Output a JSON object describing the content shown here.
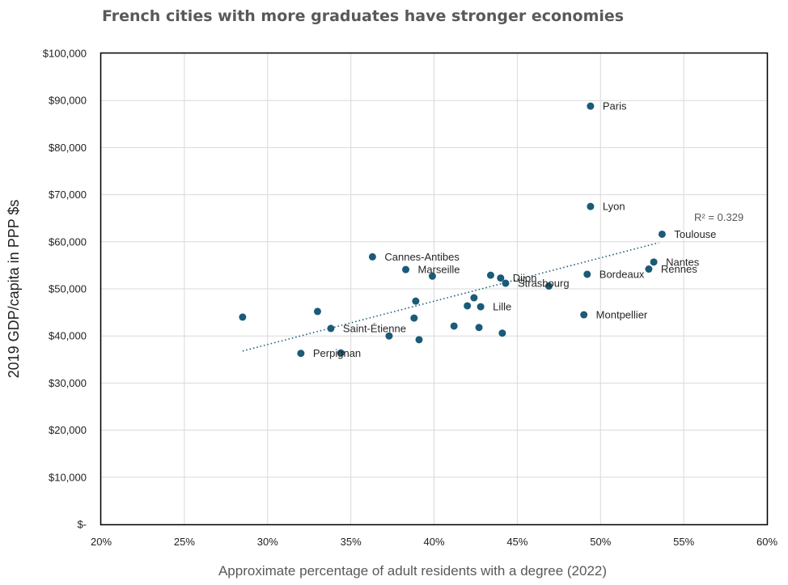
{
  "chart_data": {
    "type": "scatter",
    "title": "French cities with more graduates have stronger economies",
    "xlabel": "Approximate percentage of adult residents with a degree (2022)",
    "ylabel": "2019 GDP/capita in PPP $s",
    "xlim": [
      0.2,
      0.6
    ],
    "ylim": [
      0,
      100000
    ],
    "x_ticks": [
      0.2,
      0.25,
      0.3,
      0.35,
      0.4,
      0.45,
      0.5,
      0.55,
      0.6
    ],
    "x_tick_labels": [
      "20%",
      "25%",
      "30%",
      "35%",
      "40%",
      "45%",
      "50%",
      "55%",
      "60%"
    ],
    "y_ticks": [
      0,
      10000,
      20000,
      30000,
      40000,
      50000,
      60000,
      70000,
      80000,
      90000,
      100000
    ],
    "y_tick_labels": [
      "$-",
      "$10,000",
      "$20,000",
      "$30,000",
      "$40,000",
      "$50,000",
      "$60,000",
      "$70,000",
      "$80,000",
      "$90,000",
      "$100,000"
    ],
    "grid": true,
    "point_color": "#1b5a78",
    "trendline": {
      "type": "linear",
      "x_range": [
        0.285,
        0.535
      ],
      "y_range": [
        36800,
        59800
      ],
      "r_squared_label": "R² = 0.329"
    },
    "points": [
      {
        "x": 0.494,
        "y": 88800,
        "label": "Paris"
      },
      {
        "x": 0.494,
        "y": 67500,
        "label": "Lyon"
      },
      {
        "x": 0.537,
        "y": 61600,
        "label": "Toulouse"
      },
      {
        "x": 0.532,
        "y": 55700,
        "label": "Nantes"
      },
      {
        "x": 0.529,
        "y": 54200,
        "label": "Rennes"
      },
      {
        "x": 0.492,
        "y": 53100,
        "label": "Bordeaux"
      },
      {
        "x": 0.49,
        "y": 44500,
        "label": "Montpellier"
      },
      {
        "x": 0.469,
        "y": 50600,
        "label": ""
      },
      {
        "x": 0.443,
        "y": 51200,
        "label": "Strasbourg"
      },
      {
        "x": 0.44,
        "y": 52300,
        "label": "Dijon"
      },
      {
        "x": 0.434,
        "y": 52900,
        "label": ""
      },
      {
        "x": 0.428,
        "y": 46200,
        "label": "Lille"
      },
      {
        "x": 0.424,
        "y": 48100,
        "label": ""
      },
      {
        "x": 0.42,
        "y": 46400,
        "label": ""
      },
      {
        "x": 0.427,
        "y": 41800,
        "label": ""
      },
      {
        "x": 0.441,
        "y": 40600,
        "label": ""
      },
      {
        "x": 0.412,
        "y": 42100,
        "label": ""
      },
      {
        "x": 0.399,
        "y": 52700,
        "label": ""
      },
      {
        "x": 0.383,
        "y": 54100,
        "label": "Marseille"
      },
      {
        "x": 0.363,
        "y": 56800,
        "label": "Cannes-Antibes"
      },
      {
        "x": 0.389,
        "y": 47400,
        "label": ""
      },
      {
        "x": 0.388,
        "y": 43800,
        "label": ""
      },
      {
        "x": 0.391,
        "y": 39200,
        "label": ""
      },
      {
        "x": 0.373,
        "y": 40000,
        "label": ""
      },
      {
        "x": 0.338,
        "y": 41600,
        "label": "Saint-Étienne"
      },
      {
        "x": 0.33,
        "y": 45200,
        "label": ""
      },
      {
        "x": 0.344,
        "y": 36400,
        "label": ""
      },
      {
        "x": 0.32,
        "y": 36300,
        "label": "Perpignan"
      },
      {
        "x": 0.285,
        "y": 44000,
        "label": ""
      }
    ]
  }
}
